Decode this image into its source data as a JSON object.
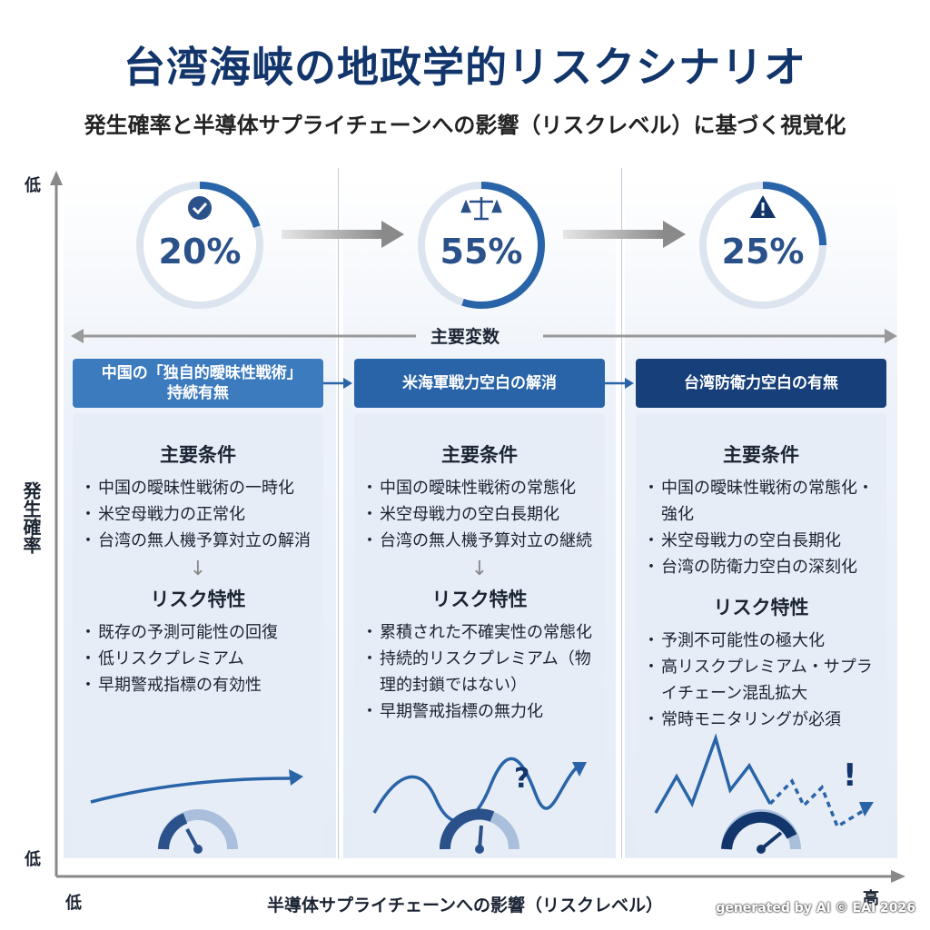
{
  "title": "台湾海峡の地政学的リスクシナリオ",
  "subtitle": "発生確率と半導体サプライチェーンへの影響（リスクレベル）に基づく視覚化",
  "axis": {
    "y_top": "低",
    "y_bottom": "低",
    "y_title": "発生確率",
    "x_low": "低",
    "x_high": "高",
    "x_title": "半導体サプライチェーンへの影響（リスクレベル）"
  },
  "key_variables_label": "主要変数",
  "scenarios": [
    {
      "probability": "20%",
      "probability_value": 20,
      "icon": "check-icon",
      "variable": "中国の「独自的曖昧性戦術」持続有無",
      "conditions_title": "主要条件",
      "conditions": [
        "中国の曖昧性戦術の一時化",
        "米空母戦力の正常化",
        "台湾の無人機予算対立の解消"
      ],
      "risk_title": "リスク特性",
      "risks": [
        "既存の予測可能性の回復",
        "低リスクプレミアム",
        "早期警戒指標の有効性"
      ]
    },
    {
      "probability": "55%",
      "probability_value": 55,
      "icon": "scale-icon",
      "variable": "米海軍戦力空白の解消",
      "conditions_title": "主要条件",
      "conditions": [
        "中国の曖昧性戦術の常態化",
        "米空母戦力の空白長期化",
        "台湾の無人機予算対立の継続"
      ],
      "risk_title": "リスク特性",
      "risks": [
        "累積された不確実性の常態化",
        "持続的リスクプレミアム（物理的封鎖ではない）",
        "早期警戒指標の無力化"
      ]
    },
    {
      "probability": "25%",
      "probability_value": 25,
      "icon": "warning-icon",
      "variable": "台湾防衛力空白の有無",
      "conditions_title": "主要条件",
      "conditions": [
        "中国の曖昧性戦術の常態化・強化",
        "米空母戦力の空白長期化",
        "台湾の防衛力空白の深刻化"
      ],
      "risk_title": "リスク特性",
      "risks": [
        "予測不可能性の極大化",
        "高リスクプレミアム・サプライチェーン混乱拡大",
        "常時モニタリングが必須"
      ]
    }
  ],
  "colors": {
    "dark_blue": "#12366c",
    "mid_blue": "#2a64a8",
    "light_blue": "#3d7bbf",
    "track": "#dce4ef"
  },
  "watermark": "generated by AI © EAI 2026"
}
